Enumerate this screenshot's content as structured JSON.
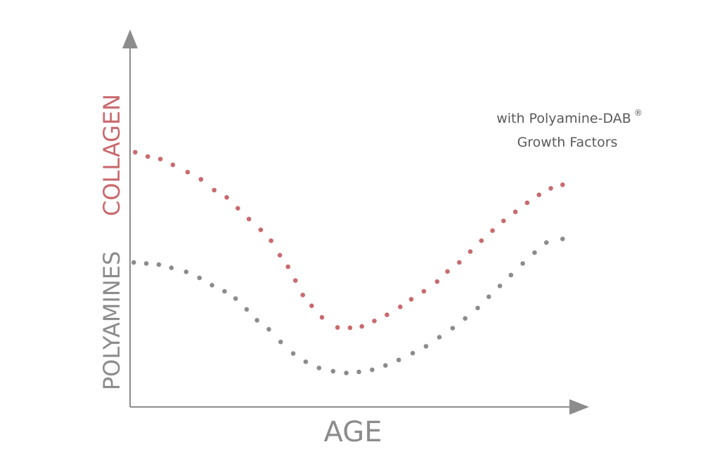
{
  "chart_data": {
    "type": "scatter",
    "title": "",
    "xlabel": "AGE",
    "ylabel": [
      "POLYAMINES",
      "COLLAGEN"
    ],
    "xlim": [
      0,
      60
    ],
    "ylim": [
      0,
      100
    ],
    "grid": false,
    "series": [
      {
        "name": "COLLAGEN",
        "color": "#c96a6e",
        "points": [
          [
            0.7,
            70.5
          ],
          [
            2.4,
            69.3
          ],
          [
            4.1,
            68.6
          ],
          [
            5.8,
            67.0
          ],
          [
            7.8,
            65.0
          ],
          [
            9.6,
            63.0
          ],
          [
            11.4,
            60.0
          ],
          [
            13.1,
            58.0
          ],
          [
            14.6,
            55.0
          ],
          [
            16.1,
            52.0
          ],
          [
            17.7,
            49.0
          ],
          [
            19.1,
            46.0
          ],
          [
            20.3,
            42.0
          ],
          [
            21.4,
            38.8
          ],
          [
            22.4,
            35.0
          ],
          [
            23.4,
            31.0
          ],
          [
            24.6,
            28.0
          ],
          [
            26.0,
            24.8
          ],
          [
            28.1,
            22.0
          ],
          [
            29.8,
            21.9
          ],
          [
            31.4,
            22.3
          ],
          [
            33.1,
            23.8
          ],
          [
            34.8,
            25.5
          ],
          [
            36.6,
            27.7
          ],
          [
            38.1,
            29.8
          ],
          [
            39.8,
            32.0
          ],
          [
            41.6,
            34.7
          ],
          [
            43.0,
            37.5
          ],
          [
            44.6,
            40.0
          ],
          [
            46.1,
            43.0
          ],
          [
            47.6,
            46.0
          ],
          [
            49.1,
            48.8
          ],
          [
            50.6,
            51.5
          ],
          [
            52.2,
            54.0
          ],
          [
            53.8,
            56.5
          ],
          [
            55.4,
            58.7
          ],
          [
            57.0,
            60.5
          ],
          [
            58.6,
            61.5
          ]
        ]
      },
      {
        "name": "POLYAMINES",
        "color": "#8c8c8c",
        "points": [
          [
            0.5,
            40.0
          ],
          [
            2.2,
            39.7
          ],
          [
            3.9,
            39.4
          ],
          [
            5.6,
            38.5
          ],
          [
            7.6,
            37.4
          ],
          [
            9.4,
            35.7
          ],
          [
            11.1,
            33.7
          ],
          [
            12.8,
            32.0
          ],
          [
            14.3,
            30.0
          ],
          [
            15.8,
            27.0
          ],
          [
            17.2,
            24.0
          ],
          [
            18.8,
            21.5
          ],
          [
            20.4,
            18.0
          ],
          [
            22.1,
            14.8
          ],
          [
            23.8,
            12.5
          ],
          [
            25.6,
            10.8
          ],
          [
            27.5,
            9.9
          ],
          [
            29.3,
            9.4
          ],
          [
            31.0,
            9.7
          ],
          [
            32.8,
            10.3
          ],
          [
            34.6,
            11.5
          ],
          [
            36.4,
            13.0
          ],
          [
            38.3,
            14.9
          ],
          [
            40.1,
            16.8
          ],
          [
            41.9,
            19.3
          ],
          [
            43.7,
            21.8
          ],
          [
            45.4,
            24.5
          ],
          [
            47.1,
            27.4
          ],
          [
            48.6,
            30.5
          ],
          [
            50.1,
            33.5
          ],
          [
            51.6,
            36.5
          ],
          [
            53.2,
            39.7
          ],
          [
            54.8,
            42.7
          ],
          [
            56.4,
            45.5
          ],
          [
            58.6,
            46.5
          ]
        ]
      }
    ],
    "annotation": {
      "line1": "with Polyamine-DAB",
      "sup": "®",
      "line2": "Growth Factors"
    }
  }
}
